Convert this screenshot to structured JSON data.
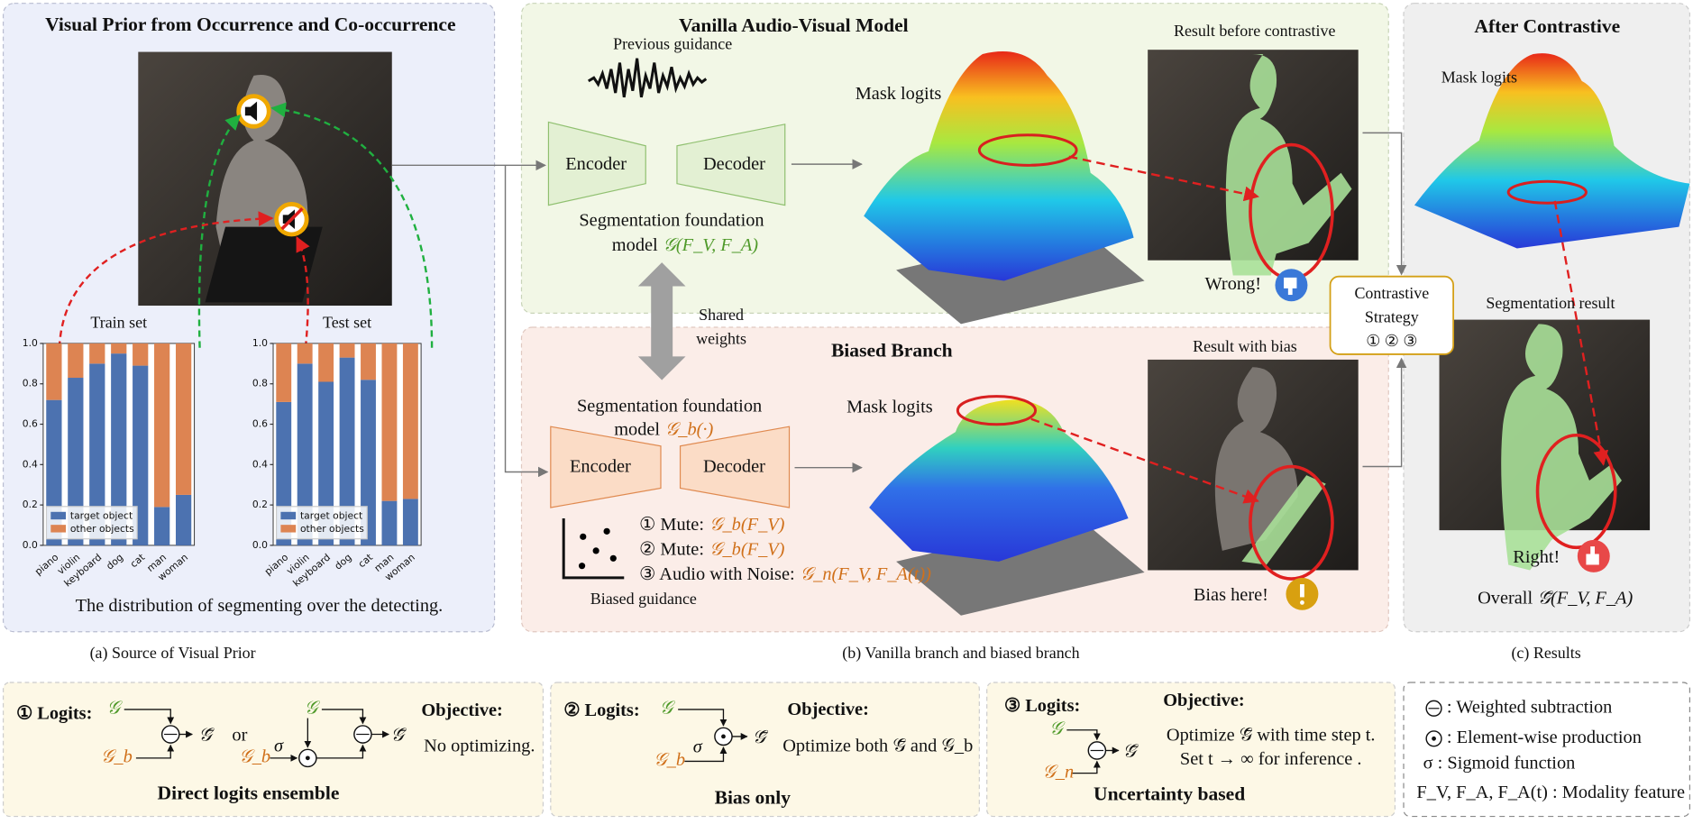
{
  "panel_a": {
    "title": "Visual Prior from Occurrence and Co-occurrence",
    "train_chart": {
      "type": "stacked-bar",
      "title": "Train set",
      "categories": [
        "piano",
        "violin",
        "keyboard",
        "dog",
        "cat",
        "man",
        "woman"
      ],
      "series": [
        {
          "name": "target object",
          "color": "#4c72b0",
          "values": [
            0.72,
            0.83,
            0.9,
            0.95,
            0.89,
            0.19,
            0.25
          ]
        },
        {
          "name": "other objects",
          "color": "#dd8452",
          "values": [
            0.28,
            0.17,
            0.1,
            0.05,
            0.11,
            0.81,
            0.75
          ]
        }
      ],
      "ylim": [
        0,
        1
      ],
      "yticks": [
        {
          "value": 0,
          "label": "0.0"
        },
        0.2,
        0.4,
        0.6,
        0.8,
        {
          "value": 1,
          "label": "1.0"
        }
      ]
    },
    "test_chart": {
      "type": "stacked-bar",
      "title": "Test set",
      "categories": [
        "piano",
        "violin",
        "keyboard",
        "dog",
        "cat",
        "man",
        "woman"
      ],
      "series": [
        {
          "name": "target object",
          "color": "#4c72b0",
          "values": [
            0.71,
            0.9,
            0.81,
            0.93,
            0.82,
            0.22,
            0.23
          ]
        },
        {
          "name": "other objects",
          "color": "#dd8452",
          "values": [
            0.29,
            0.1,
            0.19,
            0.07,
            0.18,
            0.78,
            0.77
          ]
        }
      ],
      "ylim": [
        0,
        1
      ],
      "yticks": [
        {
          "value": 0,
          "label": "0.0"
        },
        0.2,
        0.4,
        0.6,
        0.8,
        {
          "value": 1,
          "label": "1.0"
        }
      ]
    },
    "caption": "The distribution of segmenting over the detecting.",
    "label": "(a) Source of Visual Prior"
  },
  "panel_b": {
    "vanilla": {
      "title": "Vanilla Audio-Visual Model",
      "previous_guidance": "Previous guidance",
      "encoder": "Encoder",
      "decoder": "Decoder",
      "model_line1": "Segmentation foundation",
      "model_line2": "model",
      "model_formula": "𝒢(F_V, F_A)",
      "mask_logits": "Mask logits",
      "result_title": "Result before contrastive",
      "verdict": "Wrong!"
    },
    "shared": [
      "Shared",
      "weights"
    ],
    "biased": {
      "title": "Biased Branch",
      "encoder": "Encoder",
      "decoder": "Decoder",
      "model_line1": "Segmentation foundation",
      "model_line2": "model",
      "model_formula": "𝒢_b(·)",
      "mask_logits": "Mask logits",
      "result_title": "Result with bias",
      "verdict": "Bias here!",
      "guidance": "Biased guidance",
      "options": [
        {
          "label": "① Mute:",
          "formula": "𝒢_b(F_V)"
        },
        {
          "label": "② Mute:",
          "formula": "𝒢_b(F_V)"
        },
        {
          "label": "③ Audio with Noise:",
          "formula": "𝒢_n(F_V, F_A(t))"
        }
      ]
    },
    "contrastive": [
      "Contrastive",
      "Strategy",
      "① ② ③"
    ],
    "label": "(b) Vanilla branch and biased branch"
  },
  "panel_c": {
    "title": "After Contrastive",
    "mask_logits": "Mask logits",
    "result_title": "Segmentation result",
    "verdict": "Right!",
    "overall": "Overall",
    "overall_formula": "𝒢̄(F_V, F_A)",
    "label": "(c) Results"
  },
  "strategies": [
    {
      "logits": "① Logits:",
      "objective": "Objective:",
      "objective_text": [
        "No optimizing."
      ],
      "name": "Direct logits ensemble",
      "symbols": [
        "𝒢",
        "𝒢_b",
        "𝒢̄",
        "or",
        "𝒢",
        "𝒢_b",
        "σ",
        "𝒢̄"
      ]
    },
    {
      "logits": "② Logits:",
      "objective": "Objective:",
      "objective_text": [
        "Optimize both 𝒢̄ and 𝒢_b"
      ],
      "name": "Bias only",
      "symbols": [
        "𝒢",
        "𝒢_b",
        "σ",
        "𝒢̄"
      ]
    },
    {
      "logits": "③ Logits:",
      "objective": "Objective:",
      "objective_text": [
        "Optimize 𝒢̄ with time step t.",
        "Set t → ∞ for inference ."
      ],
      "name": "Uncertainty based",
      "symbols": [
        "𝒢",
        "𝒢_n",
        "𝒢̄"
      ]
    }
  ],
  "legend": [
    ": Weighted subtraction",
    ": Element-wise production",
    "σ : Sigmoid function",
    "F_V, F_A, F_A(t) : Modality feature"
  ]
}
